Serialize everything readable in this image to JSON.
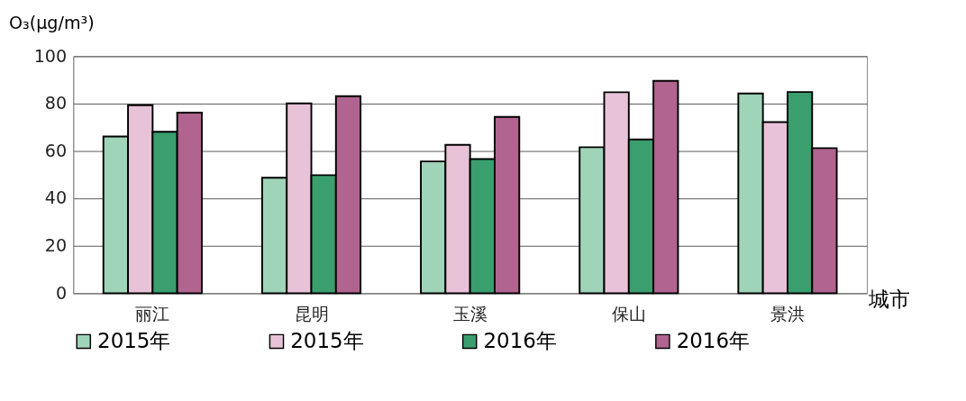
{
  "chart_data": {
    "type": "bar",
    "xlabel": "城市",
    "ylabel": "O₃(μg/m³)",
    "categories": [
      "丽江",
      "昆明",
      "玉溪",
      "保山",
      "景洪"
    ],
    "series": [
      {
        "name": "2015年",
        "color": "#9fd4b8",
        "values": [
          66.1,
          48.7,
          55.6,
          61.6,
          84.3
        ]
      },
      {
        "name": "2015年",
        "color": "#e8c3d8",
        "values": [
          79.3,
          80.1,
          62.6,
          84.8,
          72.2
        ]
      },
      {
        "name": "2016年",
        "color": "#3a9e6e",
        "values": [
          68.1,
          49.8,
          56.6,
          64.9,
          84.9
        ]
      },
      {
        "name": "2016年",
        "color": "#b0648f",
        "values": [
          76.2,
          83.1,
          74.4,
          89.6,
          61.2
        ]
      }
    ],
    "ylim": [
      0,
      100
    ],
    "yticks": [
      0,
      20,
      40,
      60,
      80,
      100
    ],
    "grid": "y",
    "legend": "bottom"
  }
}
